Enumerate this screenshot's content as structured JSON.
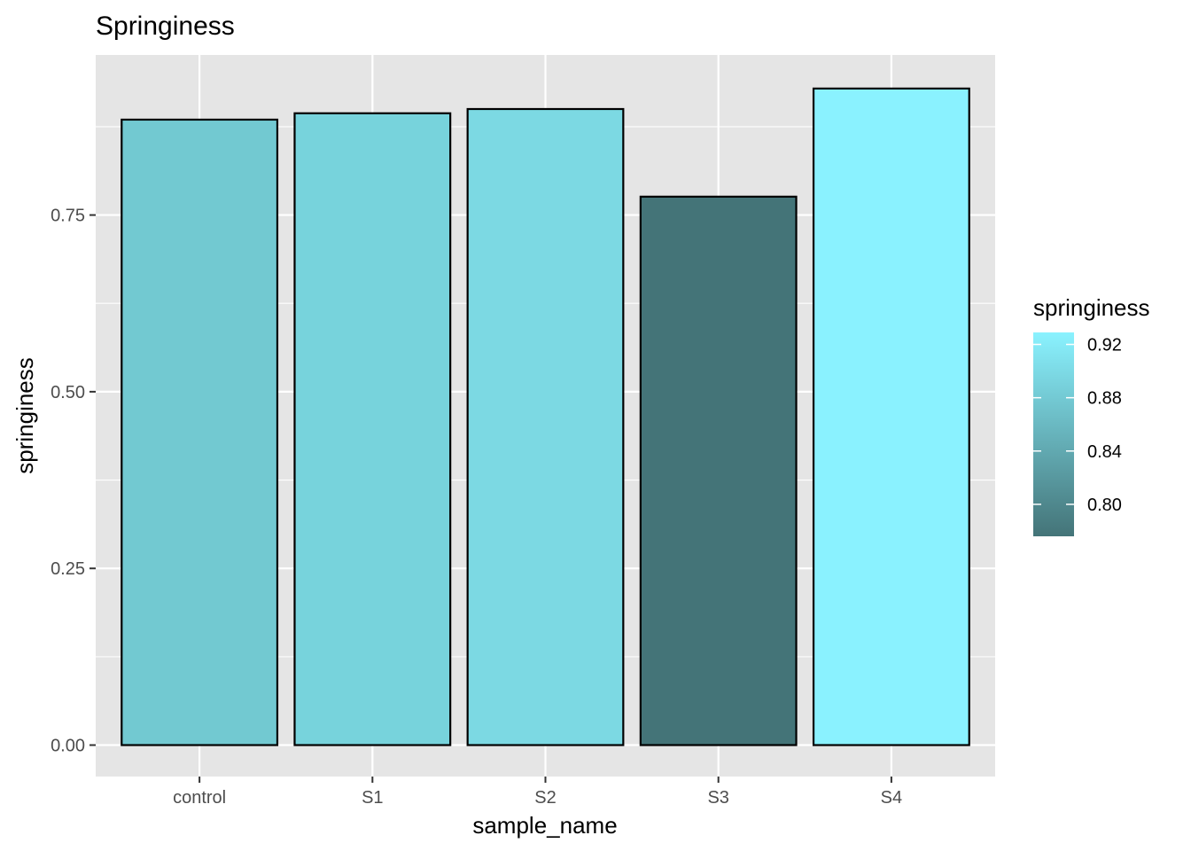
{
  "chart_data": {
    "type": "bar",
    "title": "Springiness",
    "xlabel": "sample_name",
    "ylabel": "springiness",
    "categories": [
      "control",
      "S1",
      "S2",
      "S3",
      "S4"
    ],
    "values": [
      0.885,
      0.894,
      0.9,
      0.776,
      0.929
    ],
    "fill_colors": [
      "#72C9D1",
      "#77D3DC",
      "#7CD9E3",
      "#447478",
      "#8AF2FF"
    ],
    "bar_outline": "#000000",
    "ylim": [
      -0.0445,
      0.9765
    ],
    "yticks": [
      0.0,
      0.25,
      0.5,
      0.75
    ],
    "ytick_labels": [
      "0.00",
      "0.25",
      "0.50",
      "0.75"
    ],
    "grid": true,
    "panel_background": "#E5E5E5",
    "gridline_color": "#FFFFFF",
    "legend": {
      "title": "springiness",
      "placement": "right",
      "range": [
        0.776,
        0.929
      ],
      "low_color": "#447478",
      "high_color": "#8AF2FF",
      "ticks": [
        0.8,
        0.84,
        0.88,
        0.92
      ],
      "tick_labels": [
        "0.80",
        "0.84",
        "0.88",
        "0.92"
      ]
    }
  }
}
